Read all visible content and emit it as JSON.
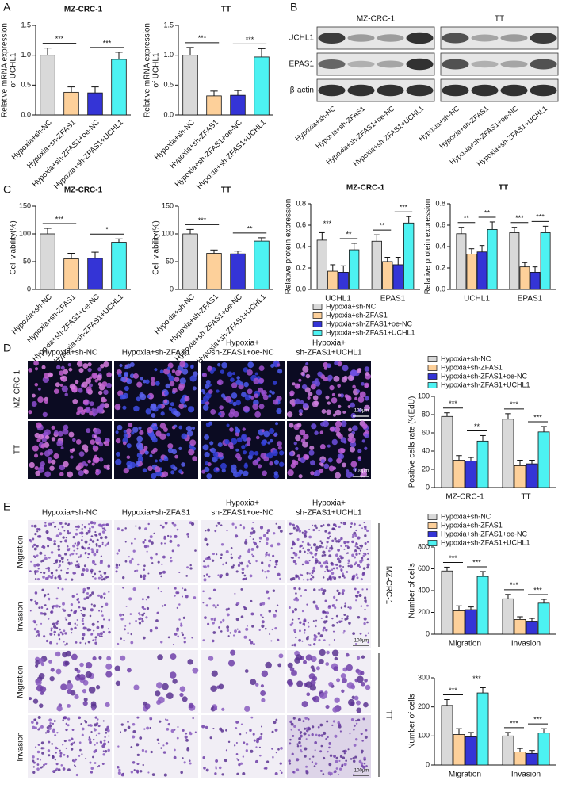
{
  "labels": {
    "panels": [
      "A",
      "B",
      "C",
      "D",
      "E"
    ]
  },
  "blot": {
    "cell_lines": [
      "MZ-CRC-1",
      "TT"
    ],
    "proteins": [
      "UCHL1",
      "EPAS1",
      "β-actin"
    ],
    "lanes": [
      "Hypoxia+sh-NC",
      "Hypoxia+sh-ZFAS1",
      "Hypoxia+sh-ZFAS1+oe-NC",
      "Hypoxia+sh-ZFAS1+UCHL1"
    ]
  },
  "images_d": {
    "columns": [
      [
        "Hypoxia+sh-NC"
      ],
      [
        "Hypoxia+sh-ZFAS1"
      ],
      [
        "Hypoxia+",
        "sh-ZFAS1+oe-NC"
      ],
      [
        "Hypoxia+",
        "sh-ZFAS1+UCHL1"
      ]
    ],
    "rows": [
      "MZ-CRC-1",
      "TT"
    ],
    "scale_bars": [
      "100μm",
      "100μm"
    ]
  },
  "images_e": {
    "columns": [
      [
        "Hypoxia+sh-NC"
      ],
      [
        "Hypoxia+sh-ZFAS1"
      ],
      [
        "Hypoxia+",
        "sh-ZFAS1+oe-NC"
      ],
      [
        "Hypoxia+",
        "sh-ZFAS1+UCHL1"
      ]
    ],
    "rows": [
      "Migration",
      "Invasion",
      "Migration",
      "Invasion"
    ],
    "cell_lines": [
      "MZ-CRC-1",
      "TT"
    ],
    "scale_bars": [
      "100μm",
      "100μm"
    ]
  },
  "chart_data": [
    {
      "type": "bar",
      "title": "MZ-CRC-1",
      "y_label": [
        "Relative mRNA expression",
        "of UCHL1"
      ],
      "categories": [
        "Hypoxia+sh-NC",
        "Hypoxia+sh-ZFAS1",
        "Hypoxia+sh-ZFAS1+oe-NC",
        "Hypoxia+sh-ZFAS1+UCHL1"
      ],
      "values": [
        1.0,
        0.38,
        0.37,
        0.93
      ],
      "errors": [
        0.12,
        0.09,
        0.1,
        0.12
      ],
      "colors": [
        "#d9d9d9",
        "#fdd09a",
        "#3434d6",
        "#4df2f2"
      ],
      "ylim": [
        0,
        1.5
      ],
      "yticks": [
        {
          "value": 0,
          "label": "0.0"
        },
        0.5,
        {
          "value": 1,
          "label": "1.0"
        },
        1.5
      ],
      "annotations": [
        "***",
        "***"
      ]
    },
    {
      "type": "bar",
      "title": "TT",
      "y_label": [
        "Relative mRNA expression",
        "of UCHL1"
      ],
      "categories": [
        "Hypoxia+sh-NC",
        "Hypoxia+sh-ZFAS1",
        "Hypoxia+sh-ZFAS1+oe-NC",
        "Hypoxia+sh-ZFAS1+UCHL1"
      ],
      "values": [
        1.0,
        0.32,
        0.33,
        0.97
      ],
      "errors": [
        0.13,
        0.08,
        0.08,
        0.14
      ],
      "colors": [
        "#d9d9d9",
        "#fdd09a",
        "#3434d6",
        "#4df2f2"
      ],
      "ylim": [
        0,
        1.5
      ],
      "yticks": [
        {
          "value": 0,
          "label": "0.0"
        },
        0.5,
        {
          "value": 1,
          "label": "1.0"
        },
        1.5
      ],
      "annotations": [
        "***",
        "***"
      ]
    },
    {
      "type": "bar",
      "title": "MZ-CRC-1",
      "y_label": [
        "Cell viability(%)"
      ],
      "categories": [
        "Hypoxia+sh-NC",
        "Hypoxia+sh-ZFAS1",
        "Hypoxia+sh-ZFAS1+oe-NC",
        "Hypoxia+sh-ZFAS1+UCHL1"
      ],
      "values": [
        100,
        55,
        56,
        85
      ],
      "errors": [
        10,
        10,
        11,
        6
      ],
      "colors": [
        "#d9d9d9",
        "#fdd09a",
        "#3434d6",
        "#4df2f2"
      ],
      "ylim": [
        0,
        150
      ],
      "yticks": [
        0,
        50,
        100,
        150
      ],
      "annotations": [
        "***",
        "*"
      ]
    },
    {
      "type": "bar",
      "title": "TT",
      "y_label": [
        "Cell viability(%)"
      ],
      "categories": [
        "Hypoxia+sh-NC",
        "Hypoxia+sh-ZFAS1",
        "Hypoxia+sh-ZFAS1+oe-NC",
        "Hypoxia+sh-ZFAS1+UCHL1"
      ],
      "values": [
        100,
        65,
        64,
        87
      ],
      "errors": [
        8,
        6,
        5,
        6
      ],
      "colors": [
        "#d9d9d9",
        "#fdd09a",
        "#3434d6",
        "#4df2f2"
      ],
      "ylim": [
        0,
        150
      ],
      "yticks": [
        0,
        50,
        100,
        150
      ],
      "annotations": [
        "***",
        "**"
      ]
    },
    {
      "type": "bar",
      "title": "MZ-CRC-1",
      "y_label": [
        "Relative protein expression"
      ],
      "categories": [
        "UCHL1",
        "EPAS1"
      ],
      "series": [
        {
          "name": "Hypoxia+sh-NC",
          "color": "#d9d9d9",
          "values": [
            0.46,
            0.45
          ],
          "errors": [
            0.07,
            0.06
          ]
        },
        {
          "name": "Hypoxia+sh-ZFAS1",
          "color": "#fdd09a",
          "values": [
            0.17,
            0.26
          ],
          "errors": [
            0.06,
            0.04
          ]
        },
        {
          "name": "Hypoxia+sh-ZFAS1+oe-NC",
          "color": "#3434d6",
          "values": [
            0.16,
            0.23
          ],
          "errors": [
            0.06,
            0.07
          ]
        },
        {
          "name": "Hypoxia+sh-ZFAS1+UCHL1",
          "color": "#4df2f2",
          "values": [
            0.37,
            0.62
          ],
          "errors": [
            0.06,
            0.06
          ]
        }
      ],
      "ylim": [
        0,
        0.8
      ],
      "yticks": [
        {
          "value": 0,
          "label": "0.0"
        },
        0.2,
        0.4,
        0.6,
        0.8
      ],
      "annotations": [
        [
          "***",
          "**"
        ],
        [
          "**",
          "***"
        ]
      ],
      "legend": "bottom"
    },
    {
      "type": "bar",
      "title": "TT",
      "y_label": [
        "Relative protein expression"
      ],
      "categories": [
        "UCHL1",
        "EPAS1"
      ],
      "series": [
        {
          "color": "#d9d9d9",
          "values": [
            0.52,
            0.53
          ],
          "errors": [
            0.06,
            0.05
          ]
        },
        {
          "color": "#fdd09a",
          "values": [
            0.33,
            0.21
          ],
          "errors": [
            0.05,
            0.04
          ]
        },
        {
          "color": "#3434d6",
          "values": [
            0.35,
            0.16
          ],
          "errors": [
            0.06,
            0.05
          ]
        },
        {
          "color": "#4df2f2",
          "values": [
            0.56,
            0.53
          ],
          "errors": [
            0.07,
            0.06
          ]
        }
      ],
      "ylim": [
        0,
        0.8
      ],
      "yticks": [
        {
          "value": 0,
          "label": "0.0"
        },
        0.2,
        0.4,
        0.6,
        0.8
      ],
      "annotations": [
        [
          "**",
          "**"
        ],
        [
          "***",
          "***"
        ]
      ]
    },
    {
      "type": "bar",
      "y_label": [
        "Positive cells rate (%EdU)"
      ],
      "categories": [
        "MZ-CRC-1",
        "TT"
      ],
      "series": [
        {
          "name": "Hypoxia+sh-NC",
          "color": "#d9d9d9",
          "values": [
            78,
            75
          ],
          "errors": [
            4,
            6
          ]
        },
        {
          "name": "Hypoxia+sh-ZFAS1",
          "color": "#fdd09a",
          "values": [
            30,
            24
          ],
          "errors": [
            5,
            6
          ]
        },
        {
          "name": "Hypoxia+sh-ZFAS1+oe-NC",
          "color": "#3434d6",
          "values": [
            29,
            26
          ],
          "errors": [
            4,
            4
          ]
        },
        {
          "name": "Hypoxia+sh-ZFAS1+UCHL1",
          "color": "#4df2f2",
          "values": [
            51,
            61
          ],
          "errors": [
            6,
            6
          ]
        }
      ],
      "ylim": [
        0,
        100
      ],
      "yticks": [
        0,
        20,
        40,
        60,
        80,
        100
      ],
      "annotations": [
        [
          "***",
          "**"
        ],
        [
          "***",
          "***"
        ]
      ],
      "legend": "top"
    },
    {
      "type": "bar",
      "y_label": [
        "Number of cells"
      ],
      "categories": [
        "Migration",
        "Invasion"
      ],
      "series": [
        {
          "name": "Hypoxia+sh-NC",
          "color": "#d9d9d9",
          "values": [
            580,
            325
          ],
          "errors": [
            35,
            40
          ]
        },
        {
          "name": "Hypoxia+sh-ZFAS1",
          "color": "#fdd09a",
          "values": [
            215,
            135
          ],
          "errors": [
            45,
            25
          ]
        },
        {
          "name": "Hypoxia+sh-ZFAS1+oe-NC",
          "color": "#3434d6",
          "values": [
            225,
            120
          ],
          "errors": [
            25,
            25
          ]
        },
        {
          "name": "Hypoxia+sh-ZFAS1+UCHL1",
          "color": "#4df2f2",
          "values": [
            530,
            285
          ],
          "errors": [
            45,
            35
          ]
        }
      ],
      "ylim": [
        0,
        800
      ],
      "yticks": [
        0,
        200,
        400,
        600,
        800
      ],
      "annotations": [
        [
          "***",
          "***"
        ],
        [
          "***",
          "***"
        ]
      ],
      "legend": "top"
    },
    {
      "type": "bar",
      "y_label": [
        "Number of cells"
      ],
      "categories": [
        "Migration",
        "Invasion"
      ],
      "series": [
        {
          "color": "#d9d9d9",
          "values": [
            205,
            100
          ],
          "errors": [
            20,
            12
          ]
        },
        {
          "color": "#fdd09a",
          "values": [
            105,
            45
          ],
          "errors": [
            20,
            12
          ]
        },
        {
          "color": "#3434d6",
          "values": [
            97,
            40
          ],
          "errors": [
            15,
            10
          ]
        },
        {
          "color": "#4df2f2",
          "values": [
            248,
            110
          ],
          "errors": [
            18,
            15
          ]
        }
      ],
      "ylim": [
        0,
        300
      ],
      "yticks": [
        0,
        100,
        200,
        300
      ],
      "annotations": [
        [
          "***",
          "***"
        ],
        [
          "***",
          "***"
        ]
      ]
    }
  ]
}
